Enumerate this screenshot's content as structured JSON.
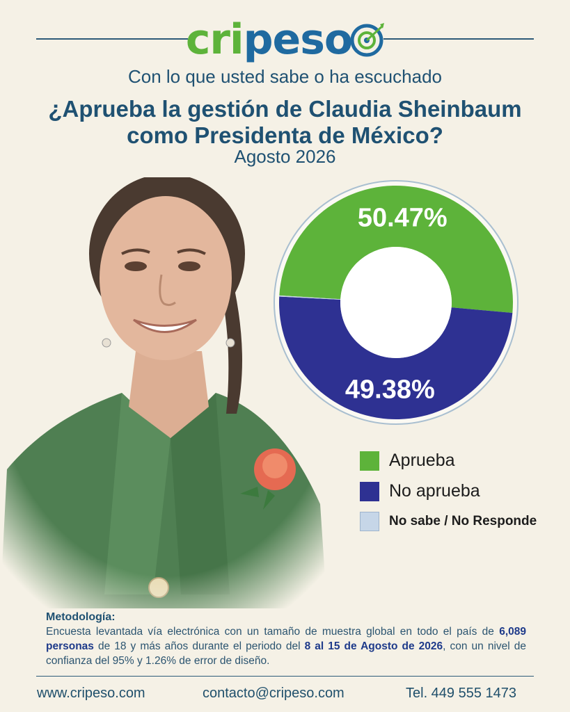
{
  "brand": {
    "part1": "cri",
    "part2": "peso"
  },
  "header": {
    "subtitle": "Con lo que usted sabe o ha escuchado",
    "title_line1": "¿Aprueba la gestión de Claudia Sheinbaum",
    "title_line2": "como Presidenta de México?",
    "date": "Agosto 2026"
  },
  "chart_data": {
    "type": "pie",
    "title": "",
    "slices": [
      {
        "name": "Aprueba",
        "value": 50.47,
        "label": "50.47%",
        "color": "#5db33a"
      },
      {
        "name": "No aprueba",
        "value": 49.38,
        "label": "49.38%",
        "color": "#2e3192"
      },
      {
        "name": "No sabe / No Responde",
        "value": 0.15,
        "label": "",
        "color": "#c6d6e8"
      }
    ],
    "legend_position": "below-right"
  },
  "legend": [
    {
      "label": "Aprueba",
      "color": "#5db33a"
    },
    {
      "label": "No aprueba",
      "color": "#2e3192"
    },
    {
      "label": "No sabe / No Responde",
      "color": "#c6d6e8"
    }
  ],
  "methodology": {
    "title": "Metodología:",
    "t1": "Encuesta levantada vía electrónica con un tamaño de muestra global en todo el país de ",
    "b1": "6,089 personas",
    "t2": " de 18 y más años durante el periodo del ",
    "b2": "8 al 15 de Agosto de 2026",
    "t3": ", con un nivel de confianza del 95% y 1.26% de error de diseño."
  },
  "footer": {
    "website": "www.cripeso.com",
    "email": "contacto@cripeso.com",
    "phone": "Tel. 449 555 1473"
  }
}
